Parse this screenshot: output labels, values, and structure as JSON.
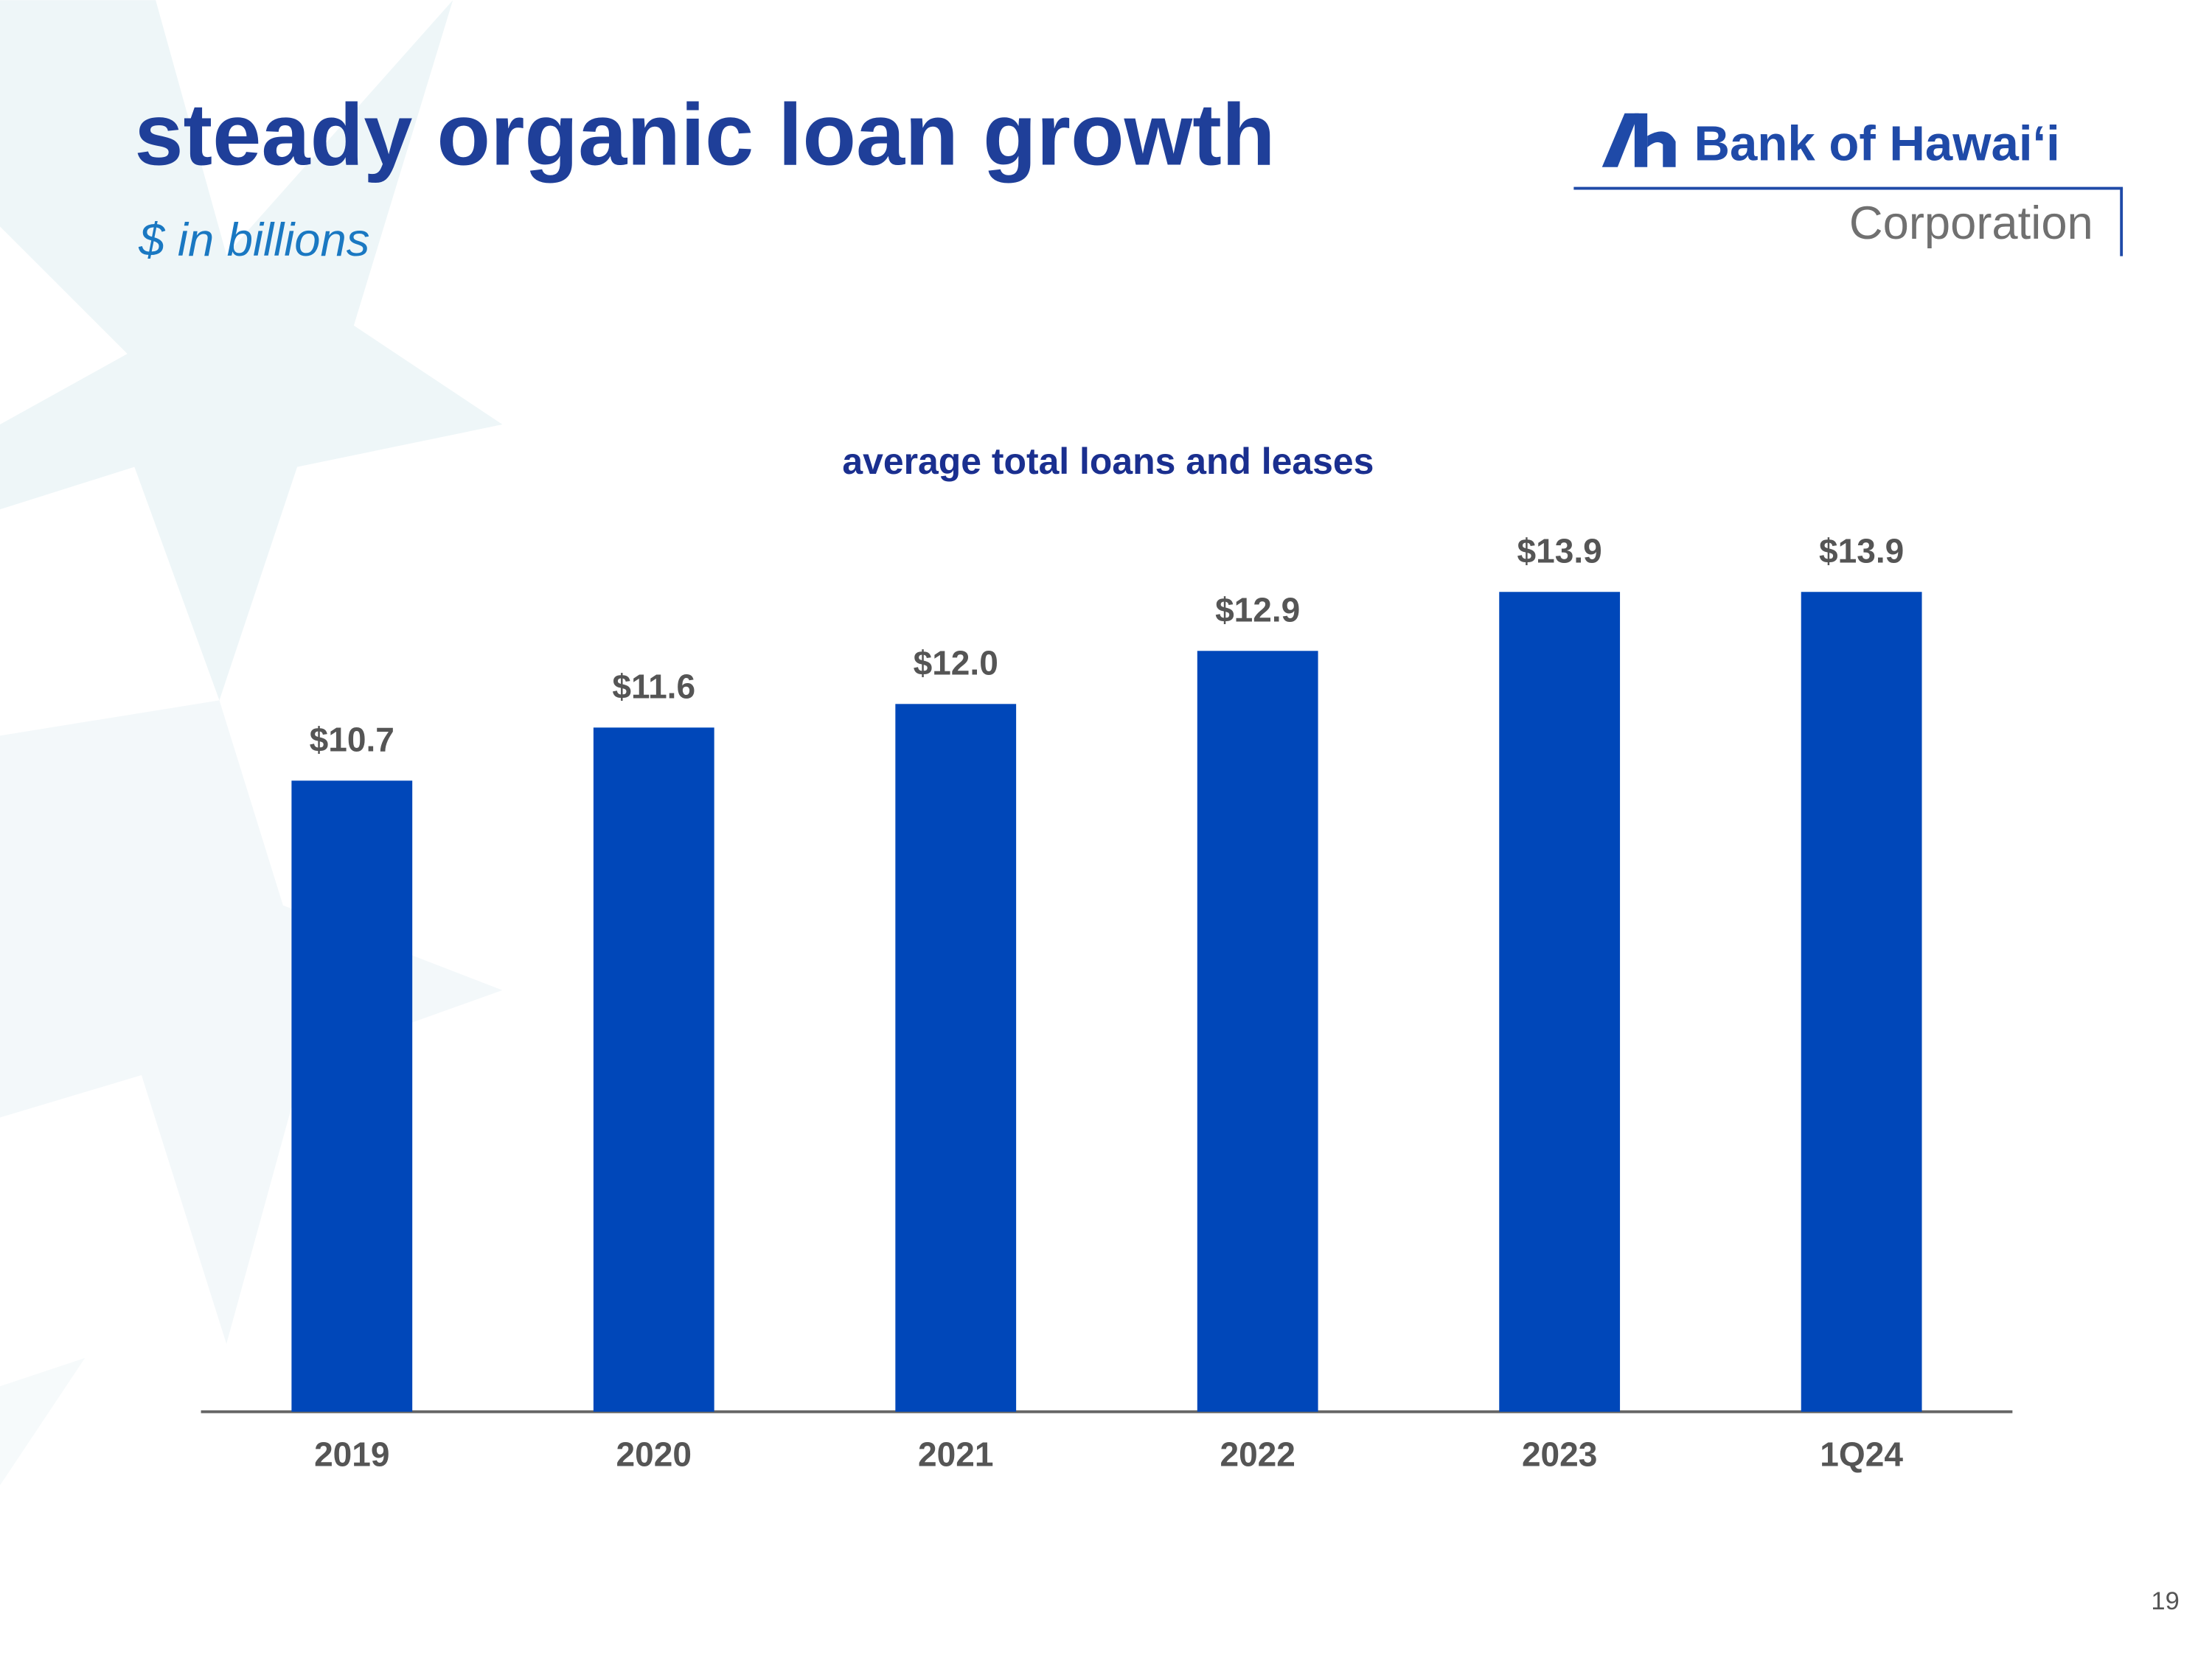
{
  "slide": {
    "title": "steady organic loan growth",
    "subtitle": "$ in billions",
    "logo_name": "Bank of Hawai‘i",
    "logo_sub": "Corporation",
    "page_number": "19"
  },
  "chart_data": {
    "type": "bar",
    "title": "average total loans and leases",
    "categories": [
      "2019",
      "2020",
      "2021",
      "2022",
      "2023",
      "1Q24"
    ],
    "values": [
      10.7,
      11.6,
      12.0,
      12.9,
      13.9,
      13.9
    ],
    "value_labels": [
      "$10.7",
      "$11.6",
      "$12.0",
      "$12.9",
      "$13.9",
      "$13.9"
    ],
    "color": "#0047b9"
  }
}
